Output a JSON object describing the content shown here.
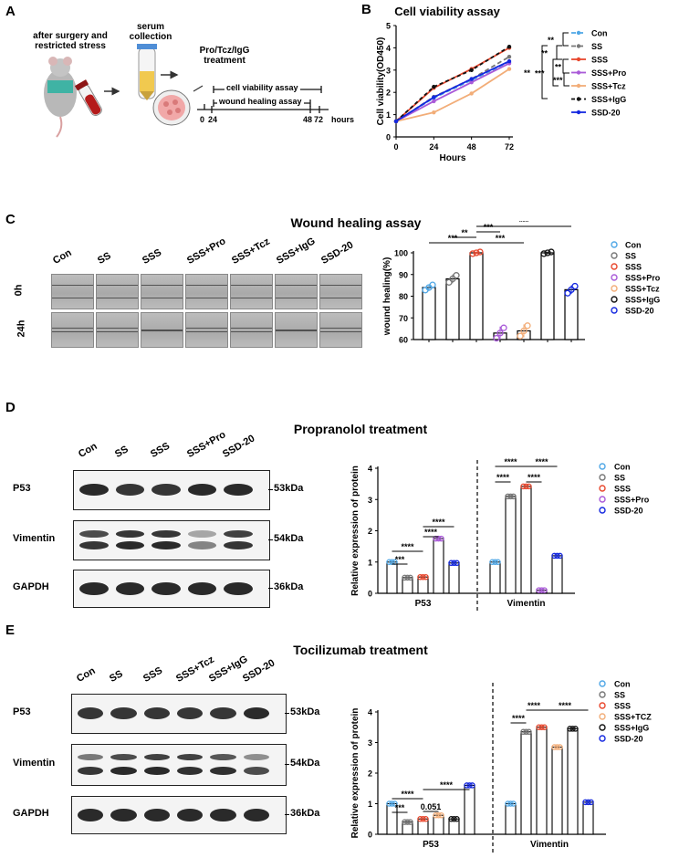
{
  "panels": {
    "A": {
      "letter": "A",
      "step1": "after surgery and\nrestricted stress",
      "step2": "serum\ncollection",
      "step3": "Pro/Tcz/IgG\ntreatment",
      "timeline_label1": "cell viability assay",
      "timeline_label2": "wound healing assay",
      "time_ticks": [
        "0",
        "24",
        "48",
        "72"
      ],
      "time_unit": "hours"
    },
    "B": {
      "letter": "B"
    },
    "C": {
      "letter": "C",
      "title": "Wound healing assay",
      "row_labels": [
        "0h",
        "24h"
      ],
      "col_labels": [
        "Con",
        "SS",
        "SSS",
        "SSS+Pro",
        "SSS+Tcz",
        "SSS+IgG",
        "SSD-20"
      ]
    },
    "D": {
      "letter": "D",
      "title": "Propranolol treatment",
      "lanes": [
        "Con",
        "SS",
        "SSS",
        "SSS+Pro",
        "SSD-20"
      ],
      "proteins": [
        "P53",
        "Vimentin",
        "GAPDH"
      ],
      "kda": [
        "53kDa",
        "54kDa",
        "36kDa"
      ]
    },
    "E": {
      "letter": "E",
      "title": "Tocilizumab treatment",
      "lanes": [
        "Con",
        "SS",
        "SSS",
        "SSS+Tcz",
        "SSS+IgG",
        "SSD-20"
      ],
      "proteins": [
        "P53",
        "Vimentin",
        "GAPDH"
      ],
      "kda": [
        "53kDa",
        "54kDa",
        "36kDa"
      ]
    }
  },
  "chart_data": [
    {
      "id": "B",
      "type": "line",
      "title": "Cell viability assay",
      "xlabel": "Hours",
      "ylabel": "Cell viability(OD450)",
      "x": [
        0,
        24,
        48,
        72
      ],
      "xticks": [
        "0",
        "24",
        "48",
        "72"
      ],
      "yticks": [
        "0",
        "1",
        "2",
        "3",
        "4",
        "5"
      ],
      "ylim": [
        0,
        5
      ],
      "series": [
        {
          "name": "Con",
          "color": "#4fa7e6",
          "dash": "5,3",
          "values": [
            0.7,
            1.75,
            2.55,
            3.35
          ]
        },
        {
          "name": "SS",
          "color": "#777777",
          "dash": "5,3",
          "values": [
            0.7,
            1.8,
            2.6,
            3.6
          ]
        },
        {
          "name": "SSS",
          "color": "#e8472d",
          "dash": "",
          "values": [
            0.7,
            2.2,
            3.05,
            4.0
          ]
        },
        {
          "name": "SSS+Pro",
          "color": "#a95ad8",
          "dash": "",
          "values": [
            0.7,
            1.6,
            2.45,
            3.3
          ]
        },
        {
          "name": "SSS+Tcz",
          "color": "#f2ad78",
          "dash": "",
          "values": [
            0.7,
            1.1,
            1.95,
            3.05
          ]
        },
        {
          "name": "SSS+IgG",
          "color": "#111111",
          "dash": "4,3",
          "values": [
            0.7,
            2.25,
            3.0,
            4.05
          ]
        },
        {
          "name": "SSD-20",
          "color": "#1428e0",
          "dash": "",
          "values": [
            0.7,
            1.78,
            2.6,
            3.4
          ]
        }
      ],
      "significance": [
        "**",
        "**",
        "**",
        "***",
        "***",
        "**"
      ]
    },
    {
      "id": "C",
      "type": "bar",
      "ylabel": "wound healing(%)",
      "categories": [
        "Con",
        "SS",
        "SSS",
        "SSS+Pro",
        "SSS+Tcz",
        "SSS+IgG",
        "SSD-20"
      ],
      "values": [
        84,
        88,
        100,
        63,
        64,
        100,
        83
      ],
      "errors": [
        1.5,
        2,
        0.5,
        3,
        3,
        0.5,
        2
      ],
      "colors": [
        "#4fa7e6",
        "#777777",
        "#e8472d",
        "#a95ad8",
        "#f2ad78",
        "#111111",
        "#1428e0"
      ],
      "ylim": [
        60,
        100
      ],
      "yticks": [
        "60",
        "70",
        "80",
        "90",
        "100"
      ],
      "significance": [
        {
          "from": 1,
          "to": 3,
          "label": "***"
        },
        {
          "from": 2,
          "to": 3,
          "label": "**"
        },
        {
          "from": 3,
          "to": 4,
          "label": "***"
        },
        {
          "from": 3,
          "to": 5,
          "label": "***"
        },
        {
          "from": 3,
          "to": 7,
          "label": "***"
        }
      ]
    },
    {
      "id": "D",
      "type": "bar",
      "ylabel": "Relative expression of protein",
      "groups": [
        "P53",
        "Vimentin"
      ],
      "legend": [
        "Con",
        "SS",
        "SSS",
        "SSS+Pro",
        "SSD-20"
      ],
      "colors": [
        "#4fa7e6",
        "#777777",
        "#e8472d",
        "#a95ad8",
        "#1428e0"
      ],
      "series": [
        {
          "group": "P53",
          "values": [
            1.0,
            0.5,
            0.52,
            1.75,
            0.97
          ]
        },
        {
          "group": "Vimentin",
          "values": [
            1.0,
            3.1,
            3.42,
            0.1,
            1.2
          ]
        }
      ],
      "ylim": [
        0,
        4
      ],
      "yticks": [
        "0",
        "1",
        "2",
        "3",
        "4"
      ],
      "significance": [
        {
          "group": 0,
          "from": 1,
          "to": 2,
          "label": "***"
        },
        {
          "group": 0,
          "from": 1,
          "to": 3,
          "label": "****"
        },
        {
          "group": 0,
          "from": 3,
          "to": 4,
          "label": "****"
        },
        {
          "group": 0,
          "from": 3,
          "to": 5,
          "label": "****"
        },
        {
          "group": 1,
          "from": 1,
          "to": 2,
          "label": "****"
        },
        {
          "group": 1,
          "from": 1,
          "to": 3,
          "label": "****"
        },
        {
          "group": 1,
          "from": 3,
          "to": 4,
          "label": "****"
        },
        {
          "group": 1,
          "from": 3,
          "to": 5,
          "label": "****"
        }
      ]
    },
    {
      "id": "E",
      "type": "bar",
      "ylabel": "Relative expression of protein",
      "groups": [
        "P53",
        "Vimentin"
      ],
      "legend": [
        "Con",
        "SS",
        "SSS",
        "SSS+TCZ",
        "SSS+IgG",
        "SSD-20"
      ],
      "colors": [
        "#4fa7e6",
        "#777777",
        "#e8472d",
        "#f2ad78",
        "#111111",
        "#1428e0"
      ],
      "series": [
        {
          "group": "P53",
          "values": [
            1.0,
            0.4,
            0.5,
            0.62,
            0.5,
            1.6
          ]
        },
        {
          "group": "Vimentin",
          "values": [
            1.0,
            3.35,
            3.5,
            2.85,
            3.45,
            1.05
          ]
        }
      ],
      "ylim": [
        0,
        4
      ],
      "yticks": [
        "0",
        "1",
        "2",
        "3",
        "4"
      ],
      "significance": [
        {
          "group": 0,
          "from": 1,
          "to": 2,
          "label": "***"
        },
        {
          "group": 0,
          "from": 1,
          "to": 3,
          "label": "****"
        },
        {
          "group": 0,
          "from": 3,
          "to": 4,
          "label": "0.051"
        },
        {
          "group": 0,
          "from": 3,
          "to": 6,
          "label": "****"
        },
        {
          "group": 1,
          "from": 1,
          "to": 2,
          "label": "****"
        },
        {
          "group": 1,
          "from": 2,
          "to": 3,
          "label": "****"
        },
        {
          "group": 1,
          "from": 3,
          "to": 6,
          "label": "****"
        }
      ]
    }
  ]
}
